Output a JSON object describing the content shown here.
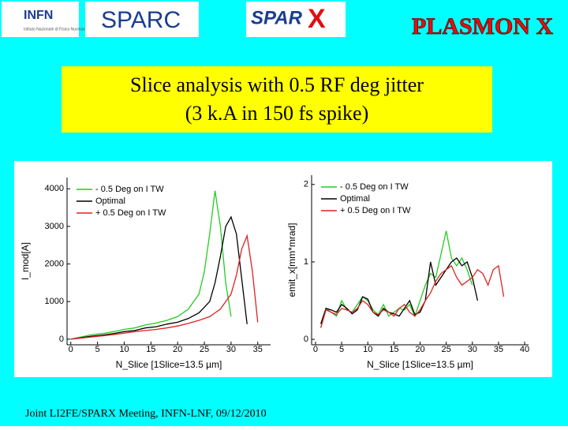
{
  "header": {
    "logos": [
      "INFN",
      "Istituto Nazionale di Fisica Nucleare",
      "SPARC",
      "SPAR",
      "X",
      "PLASMON X"
    ]
  },
  "title": [
    "Slice analysis with 0.5 RF deg jitter",
    "(3 k.A in 150 fs spike)"
  ],
  "footer": "Joint LI2FE/SPARX Meeting, INFN-LNF, 09/12/2010",
  "chart_data": [
    {
      "type": "line",
      "xlabel": "N_Slice [1Slice=13.5 µm]",
      "ylabel": "I_mod[A]",
      "xlim": [
        -0.7,
        37.4
      ],
      "xticks": [
        0,
        5,
        10,
        15,
        20,
        25,
        30,
        35
      ],
      "ylim": [
        -150,
        4300
      ],
      "yticks": [
        0,
        1000,
        2000,
        3000,
        4000
      ],
      "series": [
        {
          "name": "- 0.5 Deg on I TW",
          "color": "#22cc22",
          "x": [
            0,
            2,
            4,
            6,
            8,
            10,
            12,
            14,
            16,
            18,
            20,
            22,
            24,
            25,
            26,
            27,
            28,
            29,
            30
          ],
          "values": [
            0,
            60,
            120,
            150,
            200,
            260,
            300,
            380,
            430,
            500,
            600,
            800,
            1200,
            1800,
            2800,
            3950,
            3000,
            1500,
            600
          ]
        },
        {
          "name": "Optimal",
          "color": "#000000",
          "x": [
            0,
            2,
            4,
            6,
            8,
            10,
            12,
            14,
            16,
            18,
            20,
            22,
            24,
            26,
            27,
            28,
            29,
            30,
            31,
            32,
            33
          ],
          "values": [
            0,
            40,
            80,
            110,
            150,
            200,
            230,
            300,
            330,
            400,
            450,
            550,
            700,
            1000,
            1500,
            2200,
            3000,
            3250,
            2800,
            1600,
            400
          ]
        },
        {
          "name": "+ 0.5 Deg on I TW",
          "color": "#dd2222",
          "x": [
            0,
            2,
            4,
            6,
            8,
            10,
            12,
            14,
            16,
            18,
            20,
            22,
            24,
            26,
            28,
            30,
            31,
            32,
            33,
            34,
            35
          ],
          "values": [
            0,
            30,
            60,
            90,
            120,
            160,
            200,
            230,
            260,
            300,
            350,
            420,
            500,
            600,
            800,
            1200,
            1700,
            2400,
            2750,
            1800,
            450
          ]
        }
      ]
    },
    {
      "type": "line",
      "xlabel": "N_Slice [1Slice=13.5 µm]",
      "ylabel": "emit_x[mm*mrad]",
      "xlim": [
        -0.75,
        40.75
      ],
      "xticks": [
        0,
        5,
        10,
        15,
        20,
        25,
        30,
        35,
        40
      ],
      "ylim": [
        -0.07,
        2.12
      ],
      "yticks": [
        0,
        1,
        2
      ],
      "series": [
        {
          "name": "- 0.5 Deg on I TW",
          "color": "#22cc22",
          "x": [
            1,
            2,
            3,
            4,
            5,
            6,
            7,
            8,
            9,
            10,
            11,
            12,
            13,
            14,
            15,
            16,
            17,
            18,
            19,
            20,
            21,
            22,
            23,
            24,
            25,
            26,
            27,
            28,
            29,
            30
          ],
          "values": [
            0.15,
            0.4,
            0.35,
            0.3,
            0.5,
            0.38,
            0.35,
            0.45,
            0.55,
            0.5,
            0.38,
            0.32,
            0.45,
            0.3,
            0.35,
            0.4,
            0.38,
            0.45,
            0.3,
            0.5,
            0.7,
            0.85,
            0.8,
            1.1,
            1.4,
            1.05,
            0.95,
            1.05,
            0.9,
            0.7
          ]
        },
        {
          "name": "Optimal",
          "color": "#000000",
          "x": [
            1,
            2,
            3,
            4,
            5,
            6,
            7,
            8,
            9,
            10,
            11,
            12,
            13,
            14,
            15,
            16,
            17,
            18,
            19,
            20,
            21,
            22,
            23,
            24,
            25,
            26,
            27,
            28,
            29,
            30,
            31
          ],
          "values": [
            0.2,
            0.4,
            0.38,
            0.35,
            0.45,
            0.4,
            0.33,
            0.38,
            0.55,
            0.52,
            0.35,
            0.3,
            0.4,
            0.35,
            0.33,
            0.3,
            0.4,
            0.5,
            0.32,
            0.35,
            0.5,
            1.0,
            0.7,
            0.8,
            0.9,
            1.0,
            1.05,
            0.95,
            1.0,
            0.8,
            0.5
          ]
        },
        {
          "name": "+ 0.5 Deg on I TW",
          "color": "#dd2222",
          "x": [
            1,
            2,
            3,
            4,
            5,
            6,
            7,
            8,
            9,
            10,
            11,
            12,
            13,
            14,
            15,
            16,
            17,
            18,
            19,
            20,
            21,
            22,
            23,
            24,
            25,
            26,
            27,
            28,
            29,
            30,
            31,
            32,
            33,
            34,
            35,
            36
          ],
          "values": [
            0.15,
            0.38,
            0.35,
            0.32,
            0.4,
            0.38,
            0.35,
            0.4,
            0.5,
            0.45,
            0.35,
            0.32,
            0.38,
            0.35,
            0.3,
            0.4,
            0.45,
            0.35,
            0.3,
            0.38,
            0.5,
            0.6,
            0.75,
            0.85,
            0.9,
            0.95,
            0.8,
            0.7,
            0.75,
            0.8,
            0.9,
            0.85,
            0.7,
            0.9,
            0.95,
            0.55
          ]
        }
      ]
    }
  ]
}
